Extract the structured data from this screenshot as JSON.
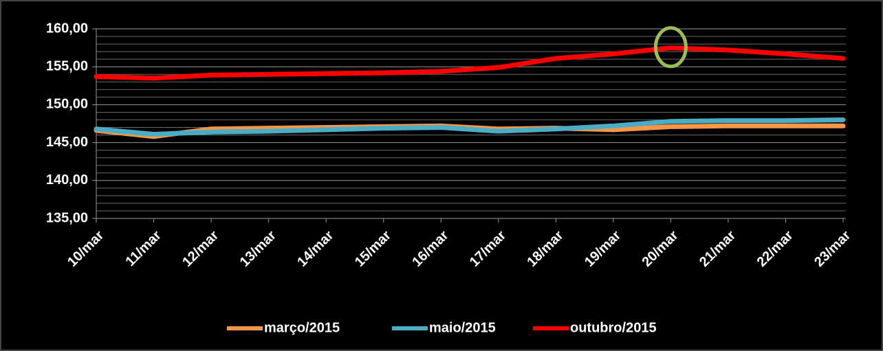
{
  "chart_data": {
    "type": "line",
    "categories": [
      "10/mar",
      "11/mar",
      "12/mar",
      "13/mar",
      "14/mar",
      "15/mar",
      "16/mar",
      "17/mar",
      "18/mar",
      "19/mar",
      "20/mar",
      "21/mar",
      "22/mar",
      "23/mar"
    ],
    "series": [
      {
        "name": "março/2015",
        "color": "#f79646",
        "values": [
          146.6,
          145.8,
          146.8,
          146.9,
          147.0,
          147.1,
          147.2,
          146.8,
          146.9,
          146.7,
          147.1,
          147.2,
          147.2,
          147.2
        ]
      },
      {
        "name": "maio/2015",
        "color": "#4bacc6",
        "values": [
          146.8,
          146.1,
          146.4,
          146.5,
          146.7,
          146.9,
          147.0,
          146.5,
          146.8,
          147.2,
          147.8,
          147.9,
          147.9,
          148.0
        ]
      },
      {
        "name": "outubro/2015",
        "color": "#ff0000",
        "values": [
          153.7,
          153.5,
          153.9,
          154.0,
          154.1,
          154.2,
          154.4,
          154.9,
          156.1,
          156.7,
          157.5,
          157.2,
          156.7,
          156.1
        ]
      }
    ],
    "ylim": [
      135,
      160
    ],
    "yticks": [
      {
        "value": 135,
        "label": "135,00"
      },
      {
        "value": 140,
        "label": "140,00"
      },
      {
        "value": 145,
        "label": "145,00"
      },
      {
        "value": 150,
        "label": "150,00"
      },
      {
        "value": 155,
        "label": "155,00"
      },
      {
        "value": 160,
        "label": "160,00"
      }
    ],
    "yminor": [
      136,
      137,
      138,
      139,
      141,
      142,
      143,
      144,
      146,
      147,
      148,
      149,
      151,
      152,
      153,
      154,
      156,
      157,
      158,
      159
    ],
    "grid": true,
    "legend": "bottom"
  }
}
